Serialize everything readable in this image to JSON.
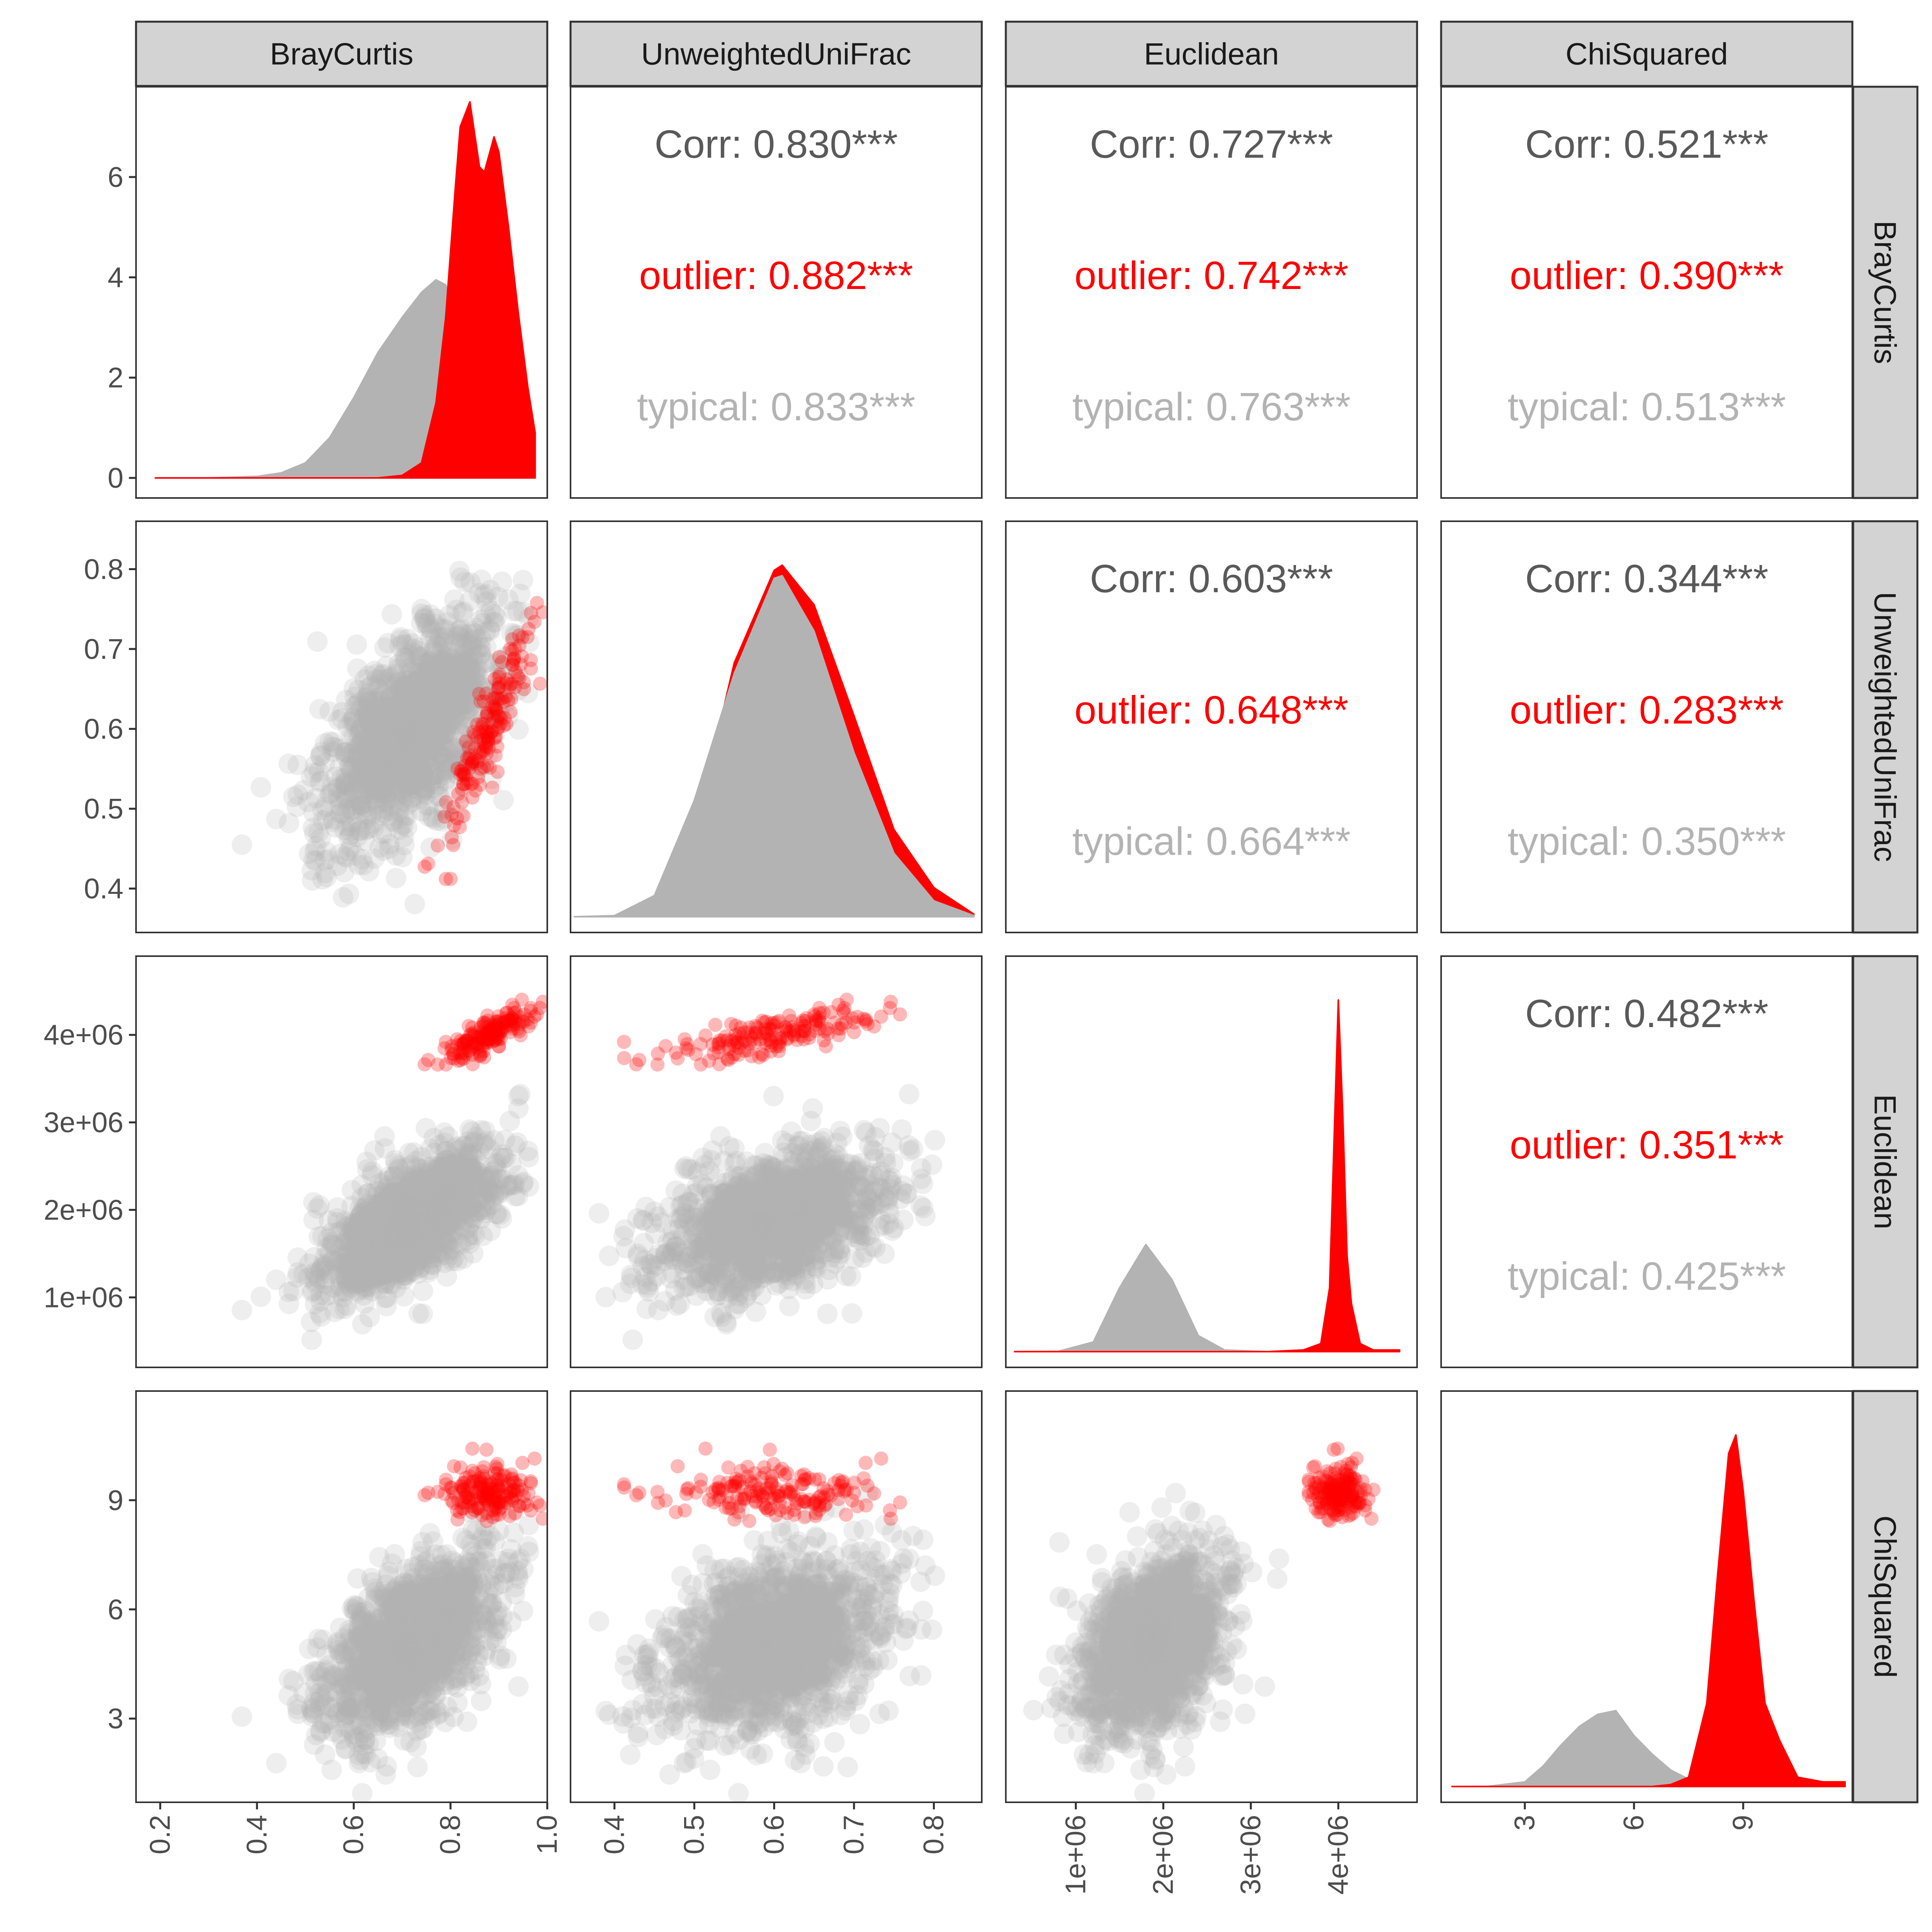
{
  "chart_data": {
    "type": "scatter",
    "variables": [
      "BrayCurtis",
      "UnweightedUniFrac",
      "Euclidean",
      "ChiSquared"
    ],
    "groups": [
      {
        "name": "outlier",
        "color": "#ff0000"
      },
      {
        "name": "typical",
        "color": "#b3b3b3"
      }
    ],
    "overall_color": "#595959",
    "diagonal_type": "density",
    "lower_type": "scatter",
    "upper_type": "correlation text",
    "axes": [
      {
        "var": "BrayCurtis",
        "range": [
          0.15,
          1.0
        ],
        "ticks": [
          "0.2",
          "0.4",
          "0.6",
          "0.8",
          "1.0"
        ],
        "tick_values": [
          0.2,
          0.4,
          0.6,
          0.8,
          1.0
        ]
      },
      {
        "var": "UnweightedUniFrac",
        "range": [
          0.345,
          0.86
        ],
        "ticks": [
          "0.4",
          "0.5",
          "0.6",
          "0.7",
          "0.8"
        ],
        "tick_values": [
          0.4,
          0.5,
          0.6,
          0.7,
          0.8
        ]
      },
      {
        "var": "Euclidean",
        "range": [
          200000,
          4900000
        ],
        "ticks": [
          "1e+06",
          "2e+06",
          "3e+06",
          "4e+06"
        ],
        "tick_values": [
          1000000,
          2000000,
          3000000,
          4000000
        ]
      },
      {
        "var": "ChiSquared",
        "range": [
          0.7,
          12.0
        ],
        "ticks": [
          "3",
          "6",
          "9"
        ],
        "tick_values": [
          3,
          6,
          9
        ]
      }
    ],
    "density_axis": {
      "var": "BrayCurtis",
      "range": [
        -0.4,
        7.8
      ],
      "ticks": [
        "0",
        "2",
        "4",
        "6"
      ],
      "tick_values": [
        0,
        2,
        4,
        6
      ]
    },
    "densities": {
      "BrayCurtis": {
        "x": [
          0.19,
          0.3,
          0.4,
          0.45,
          0.5,
          0.55,
          0.6,
          0.65,
          0.7,
          0.74,
          0.77,
          0.79,
          0.81,
          0.82,
          0.84,
          0.86,
          0.87,
          0.89,
          0.9,
          0.92,
          0.94,
          0.96,
          0.975
        ],
        "typical": [
          0,
          0,
          0.03,
          0.1,
          0.3,
          0.8,
          1.6,
          2.5,
          3.2,
          3.7,
          3.95,
          3.85,
          3.3,
          3.0,
          2.6,
          2.1,
          1.8,
          1.4,
          1.2,
          0.8,
          0.5,
          0.25,
          0.1
        ],
        "outlier": [
          0,
          0,
          0,
          0,
          0,
          0,
          0,
          0,
          0.05,
          0.3,
          1.5,
          3.2,
          5.8,
          7.0,
          7.5,
          6.2,
          6.1,
          6.8,
          6.5,
          5.0,
          3.3,
          1.8,
          0.9
        ]
      },
      "UnweightedUniFrac": {
        "x": [
          0.35,
          0.4,
          0.45,
          0.5,
          0.55,
          0.6,
          0.61,
          0.65,
          0.7,
          0.75,
          0.8,
          0.85
        ],
        "typical": [
          0,
          0.02,
          0.4,
          2.2,
          4.6,
          6.4,
          6.45,
          5.4,
          3.1,
          1.2,
          0.3,
          0.02
        ],
        "outlier": [
          0,
          0,
          0.1,
          1.6,
          4.8,
          6.55,
          6.65,
          5.9,
          3.8,
          1.65,
          0.55,
          0.05
        ]
      },
      "Euclidean": {
        "x": [
          300000,
          800000,
          1200000,
          1500000,
          1800000,
          2100000,
          2400000,
          2700000,
          3200000,
          3600000,
          3800000,
          3900000,
          3950000,
          4000000,
          4050000,
          4100000,
          4150000,
          4250000,
          4400000,
          4700000
        ],
        "typical": [
          0,
          0.002,
          0.06,
          0.4,
          0.67,
          0.45,
          0.1,
          0.01,
          0,
          0,
          0,
          0,
          0,
          0,
          0,
          0,
          0,
          0,
          0,
          0
        ],
        "outlier": [
          0,
          0,
          0,
          0,
          0,
          0,
          0,
          0,
          0,
          0.01,
          0.05,
          0.4,
          1.3,
          2.2,
          1.5,
          0.6,
          0.3,
          0.05,
          0.01,
          0.01
        ]
      },
      "ChiSquared": {
        "x": [
          1.0,
          2.0,
          3.0,
          3.5,
          4.0,
          4.5,
          5.0,
          5.5,
          6.0,
          6.5,
          7.0,
          7.5,
          8.0,
          8.3,
          8.6,
          8.8,
          9.0,
          9.3,
          9.6,
          10.0,
          10.5,
          11.2,
          11.8
        ],
        "typical": [
          0,
          0.002,
          0.05,
          0.22,
          0.45,
          0.65,
          0.78,
          0.82,
          0.55,
          0.35,
          0.18,
          0.08,
          0.03,
          0.01,
          0.01,
          0,
          0,
          0,
          0,
          0,
          0,
          0,
          0
        ],
        "outlier": [
          0,
          0,
          0,
          0,
          0,
          0,
          0,
          0,
          0,
          0,
          0.02,
          0.1,
          0.9,
          2.3,
          3.6,
          3.8,
          3.2,
          2.0,
          0.9,
          0.5,
          0.1,
          0.05,
          0.05
        ]
      }
    },
    "correlations": [
      {
        "row": "BrayCurtis",
        "col": "UnweightedUniFrac",
        "corr": "Corr: 0.830***",
        "outlier": "outlier: 0.882***",
        "typical": "typical: 0.833***"
      },
      {
        "row": "BrayCurtis",
        "col": "Euclidean",
        "corr": "Corr: 0.727***",
        "outlier": "outlier: 0.742***",
        "typical": "typical: 0.763***"
      },
      {
        "row": "BrayCurtis",
        "col": "ChiSquared",
        "corr": "Corr: 0.521***",
        "outlier": "outlier: 0.390***",
        "typical": "typical: 0.513***"
      },
      {
        "row": "UnweightedUniFrac",
        "col": "Euclidean",
        "corr": "Corr: 0.603***",
        "outlier": "outlier: 0.648***",
        "typical": "typical: 0.664***"
      },
      {
        "row": "UnweightedUniFrac",
        "col": "ChiSquared",
        "corr": "Corr: 0.344***",
        "outlier": "outlier: 0.283***",
        "typical": "typical: 0.350***"
      },
      {
        "row": "Euclidean",
        "col": "ChiSquared",
        "corr": "Corr: 0.482***",
        "outlier": "outlier: 0.351***",
        "typical": "typical: 0.425***"
      }
    ]
  }
}
